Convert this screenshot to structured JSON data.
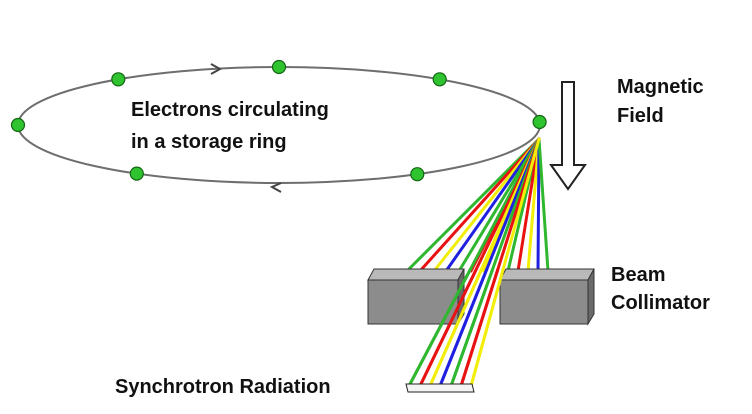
{
  "labels": {
    "ring_line1": "Electrons circulating",
    "ring_line2": "in a storage ring",
    "magnetic_line1": "Magnetic",
    "magnetic_line2": "Field",
    "collimator_line1": "Beam",
    "collimator_line2": "Collimator",
    "radiation": "Synchrotron Radiation"
  },
  "colors": {
    "ring": "#6e6e6e",
    "electron_fill": "#2fc42f",
    "electron_stroke": "#146614",
    "block_front": "#8c8c8c",
    "block_top": "#b9b9b9",
    "block_side": "#6a6a6a",
    "beams": [
      "#2fb82f",
      "#e81212",
      "#f2ee0a",
      "#2020e0"
    ]
  },
  "electrons": {
    "count": 7
  }
}
